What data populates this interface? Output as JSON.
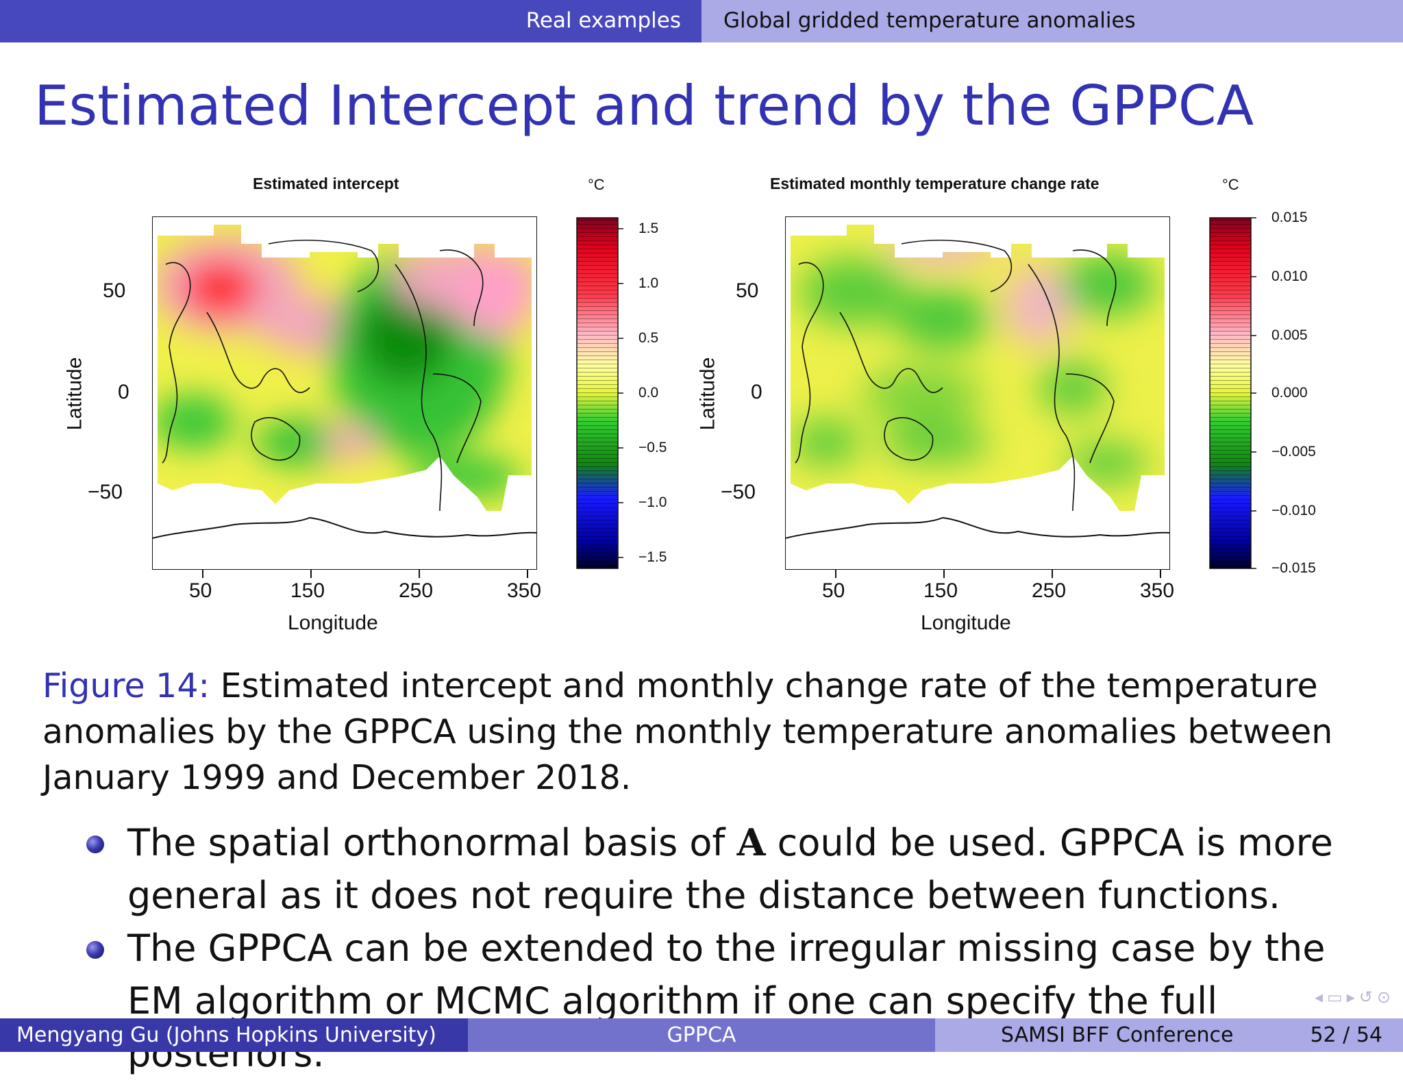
{
  "header": {
    "section": "Real examples",
    "subsection": "Global gridded temperature anomalies"
  },
  "slide_title": "Estimated Intercept and trend by the GPPCA",
  "chart_data": [
    {
      "type": "heatmap",
      "title": "Estimated intercept",
      "unit": "°C",
      "xlabel": "Longitude",
      "ylabel": "Latitude",
      "x_ticks": [
        "50",
        "150",
        "250",
        "350"
      ],
      "y_ticks": [
        "50",
        "0",
        "−50"
      ],
      "colorbar_ticks": [
        "1.5",
        "1.0",
        "0.5",
        "0.0",
        "−0.5",
        "−1.0",
        "−1.5"
      ],
      "colorbar_range": [
        -1.5,
        1.5
      ],
      "colorscale": [
        "#000033",
        "#0000ff",
        "#00cc00",
        "#ffff66",
        "#ffb6c1",
        "#ff0000",
        "#800000"
      ]
    },
    {
      "type": "heatmap",
      "title": "Estimated monthly temperature change rate",
      "unit": "°C",
      "xlabel": "Longitude",
      "ylabel": "Latitude",
      "x_ticks": [
        "50",
        "150",
        "250",
        "350"
      ],
      "y_ticks": [
        "50",
        "0",
        "−50"
      ],
      "colorbar_ticks": [
        "0.015",
        "0.010",
        "0.005",
        "0.000",
        "−0.005",
        "−0.010",
        "−0.015"
      ],
      "colorbar_range": [
        -0.015,
        0.015
      ],
      "colorscale": [
        "#000033",
        "#0000ff",
        "#00cc00",
        "#ffff66",
        "#ffb6c1",
        "#ff0000",
        "#800000"
      ]
    }
  ],
  "caption": {
    "label": "Figure 14:",
    "text": " Estimated intercept and monthly change rate of the temperature anomalies by the GPPCA using the monthly temperature anomalies between January 1999 and December 2018."
  },
  "bullets": [
    {
      "pre": "The spatial orthonormal basis of ",
      "math": "A",
      "post": " could be used. GPPCA is more general as it does not require the distance between functions."
    },
    {
      "text": "The GPPCA can be extended to the irregular missing case by the EM algorithm or MCMC algorithm if one can specify the full posteriors."
    }
  ],
  "footer": {
    "author": "Mengyang Gu  (Johns Hopkins University)",
    "short_title": "GPPCA",
    "conference": "SAMSI BFF Conference",
    "page": "52 / 54"
  },
  "colors": {
    "header_dark": "#4848bd",
    "header_light": "#a9aae6",
    "title_blue": "#3232b2",
    "footer_dark": "#3838a8",
    "footer_mid": "#7272cc"
  }
}
